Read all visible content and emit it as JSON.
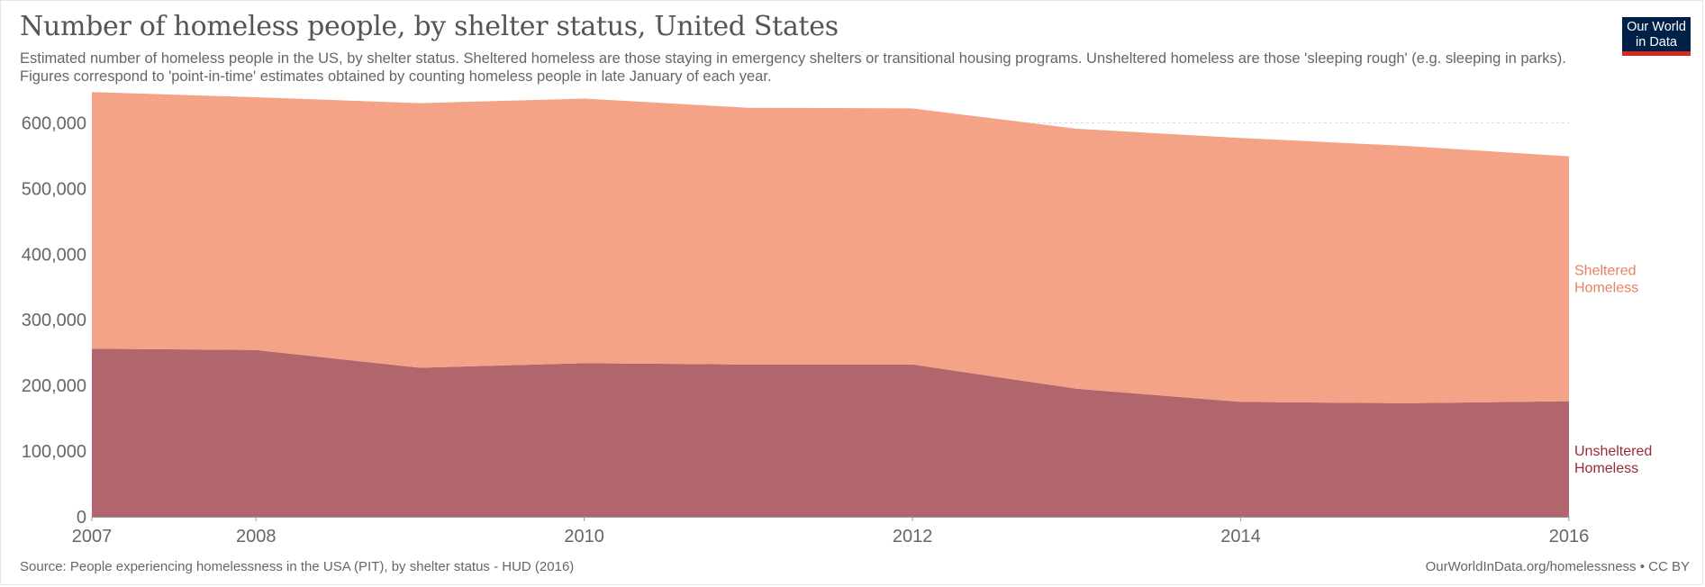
{
  "header": {
    "title": "Number of homeless people, by shelter status, United States",
    "subtitle": "Estimated number of homeless people in the US, by shelter status. Sheltered homeless are those staying in emergency shelters or transitional housing programs. Unsheltered homeless are those 'sleeping rough' (e.g. sleeping in parks). Figures correspond to 'point-in-time' estimates obtained by counting homeless people in late January of each year.",
    "logo_line1": "Our World",
    "logo_line2": "in Data"
  },
  "footer": {
    "source": "Source: People experiencing homelessness in the USA (PIT), by shelter status - HUD (2016)",
    "credit": "OurWorldInData.org/homelessness • CC BY"
  },
  "colors": {
    "sheltered_fill": "#f4a387",
    "sheltered_label": "#e9805f",
    "unsheltered_fill": "#b0666c",
    "unsheltered_label": "#9a2a38",
    "grid": "#dddddd",
    "axis": "#999999",
    "logo_bg": "#002147",
    "logo_accent": "#d42b21"
  },
  "chart_data": {
    "type": "area",
    "stacked": true,
    "x": [
      2007,
      2008,
      2009,
      2010,
      2011,
      2012,
      2013,
      2014,
      2015,
      2016
    ],
    "xticks": [
      "2007",
      "2008",
      "2010",
      "2012",
      "2014",
      "2016"
    ],
    "yticks": [
      "0",
      "100,000",
      "200,000",
      "300,000",
      "400,000",
      "500,000",
      "600,000"
    ],
    "ylim": [
      0,
      650000
    ],
    "grid": true,
    "legend": "right, inline labels",
    "series": [
      {
        "name": "Unsheltered Homeless",
        "label_lines": [
          "Unsheltered",
          "Homeless"
        ],
        "values": [
          256000,
          254000,
          227000,
          234000,
          232000,
          232000,
          195000,
          175000,
          173000,
          176000
        ]
      },
      {
        "name": "Sheltered Homeless",
        "label_lines": [
          "Sheltered",
          "Homeless"
        ],
        "values": [
          391000,
          385000,
          403000,
          403000,
          391000,
          390000,
          396000,
          402000,
          392000,
          373000
        ]
      }
    ]
  }
}
